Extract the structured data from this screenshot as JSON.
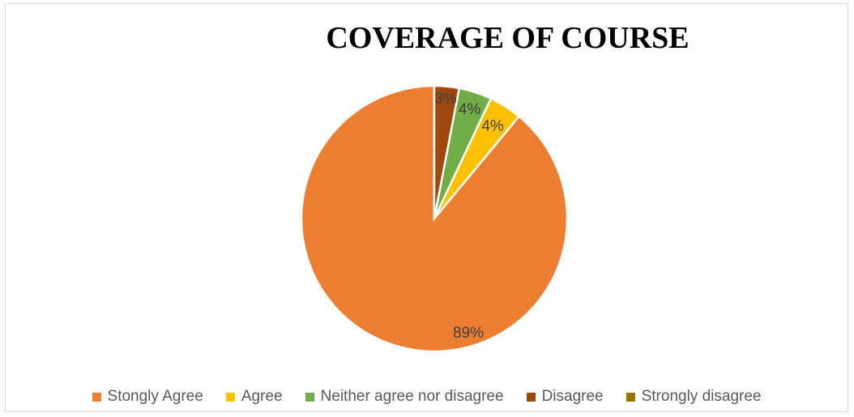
{
  "chart_data": {
    "type": "pie",
    "title": "COVERAGE OF COURSE",
    "categories": [
      "Stongly Agree",
      "Agree",
      "Neither agree nor disagree",
      "Disagree",
      "Strongly disagree"
    ],
    "values": [
      89,
      4,
      4,
      3,
      0
    ],
    "labels": [
      "89%",
      "4%",
      "4%",
      "3%",
      ""
    ],
    "colors": [
      "#ED7D31",
      "#FFC000",
      "#70AD47",
      "#9E480E",
      "#997300"
    ],
    "legend_position": "bottom"
  }
}
